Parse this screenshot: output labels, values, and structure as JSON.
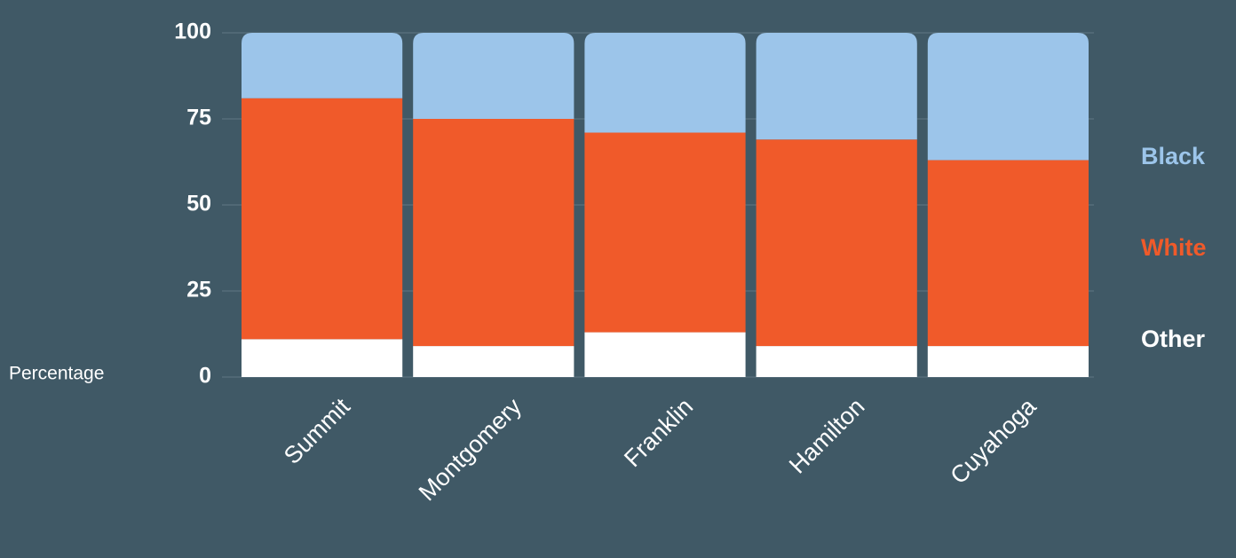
{
  "chart_data": {
    "type": "stacked_bar",
    "y_label": "Percentage",
    "categories": [
      "Summit",
      "Montgomery",
      "Franklin",
      "Hamilton",
      "Cuyahoga"
    ],
    "series": [
      {
        "name": "Other",
        "color": "#ffffff",
        "values": [
          11,
          9,
          13,
          9,
          9
        ]
      },
      {
        "name": "White",
        "color": "#f05a2a",
        "values": [
          70,
          66,
          58,
          60,
          54
        ]
      },
      {
        "name": "Black",
        "color": "#9cc5ea",
        "values": [
          19,
          25,
          29,
          31,
          37
        ]
      }
    ],
    "ylim": [
      0,
      100
    ],
    "yticks": [
      0,
      25,
      50,
      75,
      100
    ],
    "grid": true,
    "legend": "right"
  }
}
